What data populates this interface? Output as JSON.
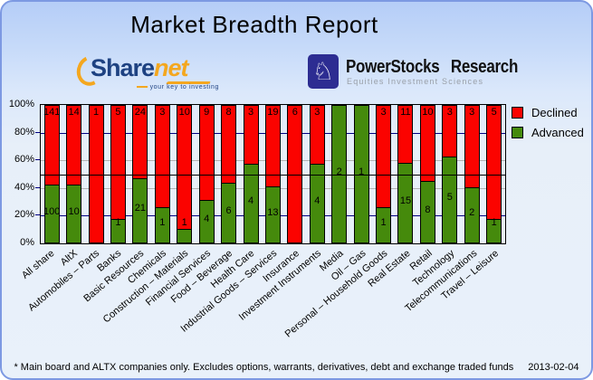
{
  "title": "Market Breadth Report",
  "logos": {
    "sharenet": {
      "brand_part1": "Share",
      "brand_part2": "net",
      "tagline": "your key to investing"
    },
    "powerstocks": {
      "name": "PowerStocks Research",
      "tagline": "Equities Investment Sciences",
      "icon": "knight-chess-icon",
      "knight_glyph": "♘"
    }
  },
  "chart_data": {
    "type": "bar",
    "stacked": true,
    "stack_mode": "percent",
    "categories": [
      "All share",
      "AltX",
      "Automobiles – Parts",
      "Banks",
      "Basic Resources",
      "Chemicals",
      "Construction – Materials",
      "Financial Services",
      "Food – Beverage",
      "Health Care",
      "Industrial Goods – Services",
      "Insurance",
      "Investment Instruments",
      "Media",
      "Oil – Gas",
      "Personal – Household Goods",
      "Real Estate",
      "Retail",
      "Technology",
      "Telecommunications",
      "Travel – Leisure"
    ],
    "series": [
      {
        "name": "Declined",
        "color": "#fb0300",
        "values": [
          141,
          14,
          1,
          5,
          24,
          3,
          10,
          9,
          8,
          3,
          19,
          6,
          3,
          0,
          0,
          3,
          11,
          10,
          3,
          3,
          5
        ]
      },
      {
        "name": "Advanced",
        "color": "#458a0c",
        "values": [
          100,
          10,
          0,
          1,
          21,
          1,
          1,
          4,
          6,
          4,
          13,
          0,
          4,
          2,
          1,
          1,
          15,
          8,
          5,
          2,
          1
        ]
      }
    ],
    "ylabel": "",
    "xlabel": "",
    "ylim": [
      0,
      100
    ],
    "y_ticks": [
      {
        "label": "100%",
        "value": 100
      },
      {
        "label": "80%",
        "value": 80
      },
      {
        "label": "60%",
        "value": 60
      },
      {
        "label": "40%",
        "value": 40
      },
      {
        "label": "20%",
        "value": 20
      },
      {
        "label": "0%",
        "value": 0
      }
    ],
    "gridlines": [
      {
        "pct": 80,
        "color": "#000080"
      },
      {
        "pct": 60,
        "color": "#b3b3b3"
      },
      {
        "pct": 40,
        "color": "#b3b3b3"
      },
      {
        "pct": 20,
        "color": "#000080"
      }
    ],
    "reference_line": {
      "pct": 50,
      "color": "#000000"
    },
    "legend_position": "right",
    "grid": true
  },
  "footer": {
    "note": "* Main board and ALTX companies only. Excludes options, warrants, derivatives, debt and exchange traded funds",
    "date": "2013-02-04"
  }
}
